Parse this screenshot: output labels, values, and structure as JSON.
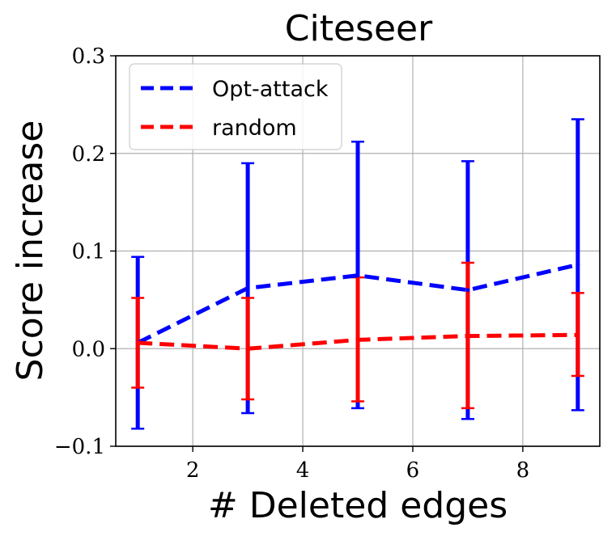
{
  "chart_data": {
    "type": "line",
    "title": "Citeseer",
    "xlabel": "# Deleted edges",
    "ylabel": "Score increase",
    "xlim": [
      0.6,
      9.4
    ],
    "ylim": [
      -0.1,
      0.3
    ],
    "xticks": [
      2,
      4,
      6,
      8
    ],
    "yticks": [
      -0.1,
      0.0,
      0.1,
      0.2,
      0.3
    ],
    "ytick_labels": [
      "−0.1",
      "0.0",
      "0.1",
      "0.2",
      "0.3"
    ],
    "grid": true,
    "legend_position": "top-left",
    "x": [
      1,
      3,
      5,
      7,
      9
    ],
    "series": [
      {
        "name": "Opt-attack",
        "color": "#0000ff",
        "line_style": "dashed",
        "values": [
          0.006,
          0.062,
          0.075,
          0.06,
          0.086
        ],
        "err_low": [
          -0.082,
          -0.066,
          -0.061,
          -0.072,
          -0.063
        ],
        "err_high": [
          0.094,
          0.19,
          0.212,
          0.192,
          0.235
        ]
      },
      {
        "name": "random",
        "color": "#ff0000",
        "line_style": "dashed",
        "values": [
          0.006,
          0.0,
          0.009,
          0.013,
          0.014
        ],
        "err_low": [
          -0.04,
          -0.052,
          -0.054,
          -0.061,
          -0.028
        ],
        "err_high": [
          0.052,
          0.052,
          0.073,
          0.088,
          0.057
        ]
      }
    ]
  }
}
